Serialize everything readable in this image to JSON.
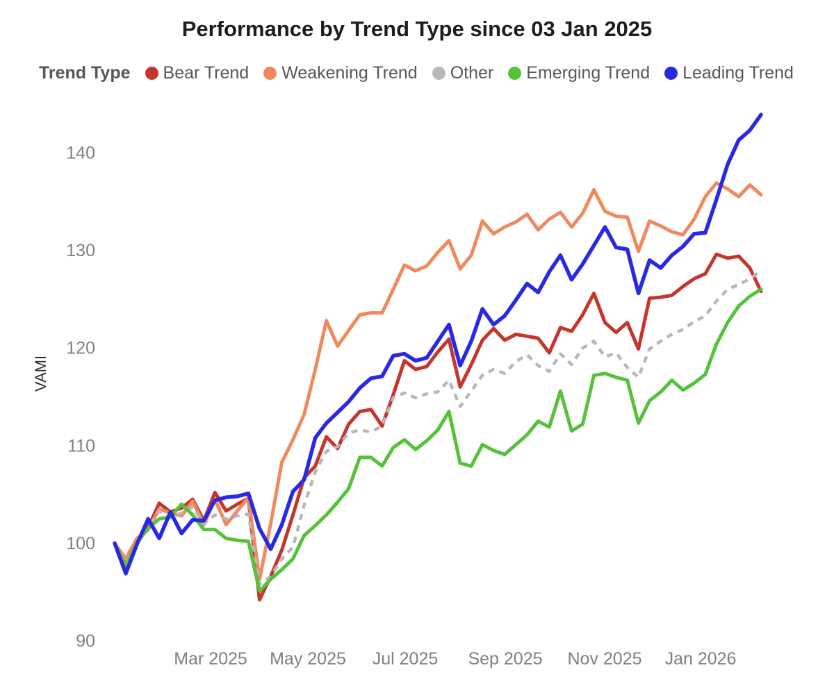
{
  "chart_data": {
    "type": "line",
    "title": "Performance by Trend Type since 03 Jan 2025",
    "legend_title": "Trend Type",
    "legend_position": "top",
    "ylabel": "VAMI",
    "grid": false,
    "ylim": [
      88,
      145.5
    ],
    "y_ticks": [
      140,
      130,
      120,
      110,
      100,
      90
    ],
    "x_tick_labels": [
      "Mar 2025",
      "May 2025",
      "Jul 2025",
      "Sep 2025",
      "Nov 2025",
      "Jan 2026"
    ],
    "x_unit": "weekly points starting 03 Jan 2025",
    "points_per_series": 59,
    "series": [
      {
        "name": "Bear Trend",
        "color": "#c5352c",
        "style": "solid",
        "values": [
          100.0,
          97.9,
          100.2,
          101.6,
          104.1,
          103.2,
          103.6,
          104.5,
          102.3,
          105.2,
          103.3,
          104.0,
          104.6,
          94.2,
          96.6,
          99.3,
          102.9,
          106.7,
          107.9,
          110.9,
          109.7,
          112.2,
          113.5,
          113.7,
          112.0,
          115.2,
          118.7,
          117.8,
          118.1,
          119.6,
          120.9,
          116.0,
          118.3,
          120.8,
          122.0,
          120.8,
          121.4,
          121.2,
          121.0,
          119.5,
          122.1,
          121.7,
          123.4,
          125.6,
          122.6,
          121.6,
          122.6,
          119.9,
          125.1,
          125.2,
          125.4,
          126.3,
          127.1,
          127.6,
          129.6,
          129.2,
          129.4,
          128.2,
          125.8
        ]
      },
      {
        "name": "Weakening Trend",
        "color": "#ee8a5e",
        "style": "solid",
        "values": [
          100.0,
          98.4,
          100.5,
          101.4,
          103.5,
          103.1,
          102.8,
          104.3,
          101.9,
          104.5,
          101.9,
          103.3,
          104.7,
          96.3,
          102.0,
          108.3,
          110.6,
          113.2,
          117.8,
          122.8,
          120.2,
          121.8,
          123.4,
          123.6,
          123.6,
          126.0,
          128.5,
          127.9,
          128.4,
          129.8,
          131.0,
          128.1,
          129.5,
          133.0,
          131.7,
          132.4,
          132.9,
          133.7,
          132.1,
          133.2,
          133.9,
          132.4,
          133.8,
          136.2,
          134.0,
          133.5,
          133.4,
          129.9,
          133.0,
          132.5,
          131.9,
          131.6,
          133.2,
          135.5,
          136.9,
          136.3,
          135.5,
          136.7,
          135.7
        ]
      },
      {
        "name": "Other",
        "color": "#b8b8b8",
        "style": "dashed",
        "values": [
          100.0,
          97.9,
          100.0,
          101.5,
          103.3,
          102.6,
          103.1,
          103.7,
          102.0,
          102.9,
          102.5,
          102.8,
          103.0,
          95.8,
          96.6,
          98.4,
          99.6,
          103.9,
          107.3,
          109.4,
          109.9,
          111.3,
          111.6,
          111.4,
          112.0,
          114.9,
          115.4,
          114.9,
          115.3,
          115.5,
          116.7,
          114.0,
          115.6,
          117.2,
          117.8,
          117.4,
          118.6,
          119.3,
          118.2,
          117.6,
          119.4,
          118.3,
          120.0,
          120.7,
          119.1,
          119.5,
          118.0,
          117.0,
          119.9,
          120.7,
          121.4,
          121.9,
          122.7,
          123.3,
          124.8,
          126.0,
          126.5,
          127.1,
          127.9
        ]
      },
      {
        "name": "Emerging Trend",
        "color": "#56c13a",
        "style": "solid",
        "values": [
          100.0,
          97.6,
          100.1,
          101.5,
          102.5,
          102.7,
          104.0,
          102.9,
          101.4,
          101.4,
          100.5,
          100.3,
          100.2,
          95.1,
          96.3,
          97.3,
          98.4,
          100.8,
          101.8,
          102.9,
          104.2,
          105.6,
          108.8,
          108.8,
          107.9,
          109.8,
          110.6,
          109.6,
          110.5,
          111.6,
          113.5,
          108.2,
          107.9,
          110.1,
          109.5,
          109.1,
          110.1,
          111.1,
          112.5,
          111.9,
          115.6,
          111.5,
          112.2,
          117.2,
          117.4,
          117.0,
          116.7,
          112.3,
          114.6,
          115.5,
          116.7,
          115.7,
          116.4,
          117.3,
          120.4,
          122.6,
          124.3,
          125.3,
          126.0
        ]
      },
      {
        "name": "Leading Trend",
        "color": "#2929e3",
        "style": "solid",
        "values": [
          100.0,
          96.9,
          99.9,
          102.5,
          100.5,
          103.2,
          101.0,
          102.4,
          102.3,
          104.4,
          104.7,
          104.8,
          105.1,
          101.5,
          99.4,
          101.9,
          105.3,
          106.5,
          110.8,
          112.3,
          113.4,
          114.5,
          115.9,
          116.9,
          117.1,
          119.2,
          119.4,
          118.7,
          119.0,
          120.7,
          122.4,
          118.2,
          120.7,
          124.0,
          122.4,
          123.3,
          124.9,
          126.6,
          125.7,
          127.8,
          129.5,
          127.0,
          128.6,
          130.5,
          132.4,
          130.3,
          130.1,
          125.6,
          129.0,
          128.2,
          129.5,
          130.4,
          131.7,
          131.8,
          135.2,
          138.8,
          141.3,
          142.3,
          143.9
        ]
      }
    ],
    "colors": {
      "title_text": "#1d1d1d",
      "tick_text": "#7f7f7f",
      "legend_text": "#585858",
      "axis_label_text": "#2e2e2e",
      "background": "#ffffff"
    }
  }
}
